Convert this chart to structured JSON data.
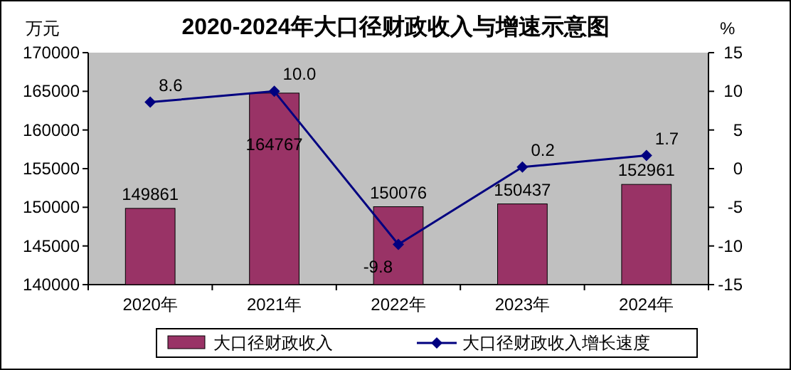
{
  "chart_data": {
    "type": "bar",
    "title": "2020-2024年大口径财政收入与增速示意图",
    "ylabel": "万元",
    "y2label": "%",
    "categories": [
      "2020年",
      "2021年",
      "2022年",
      "2023年",
      "2024年"
    ],
    "series": [
      {
        "name": "大口径财政收入",
        "color": "#993366",
        "values": [
          149861,
          164767,
          150076,
          150437,
          152961
        ],
        "value_labels": [
          "149861",
          "164767",
          "150076",
          "150437",
          "152961"
        ]
      },
      {
        "name": "大口径财政收入增长速度",
        "type": "line",
        "axis": "y2",
        "color": "#000080",
        "marker": "diamond",
        "values": [
          8.6,
          10.0,
          -9.8,
          0.2,
          1.7
        ],
        "value_labels": [
          "8.6",
          "10.0",
          "-9.8",
          "0.2",
          "1.7"
        ]
      }
    ],
    "ylim": [
      140000,
      170000
    ],
    "yticks": [
      140000,
      145000,
      150000,
      155000,
      160000,
      165000,
      170000
    ],
    "y2lim": [
      -15,
      15
    ],
    "y2ticks": [
      -15,
      -10,
      -5,
      0,
      5,
      10,
      15
    ],
    "legend": "bottom",
    "grid": false
  }
}
